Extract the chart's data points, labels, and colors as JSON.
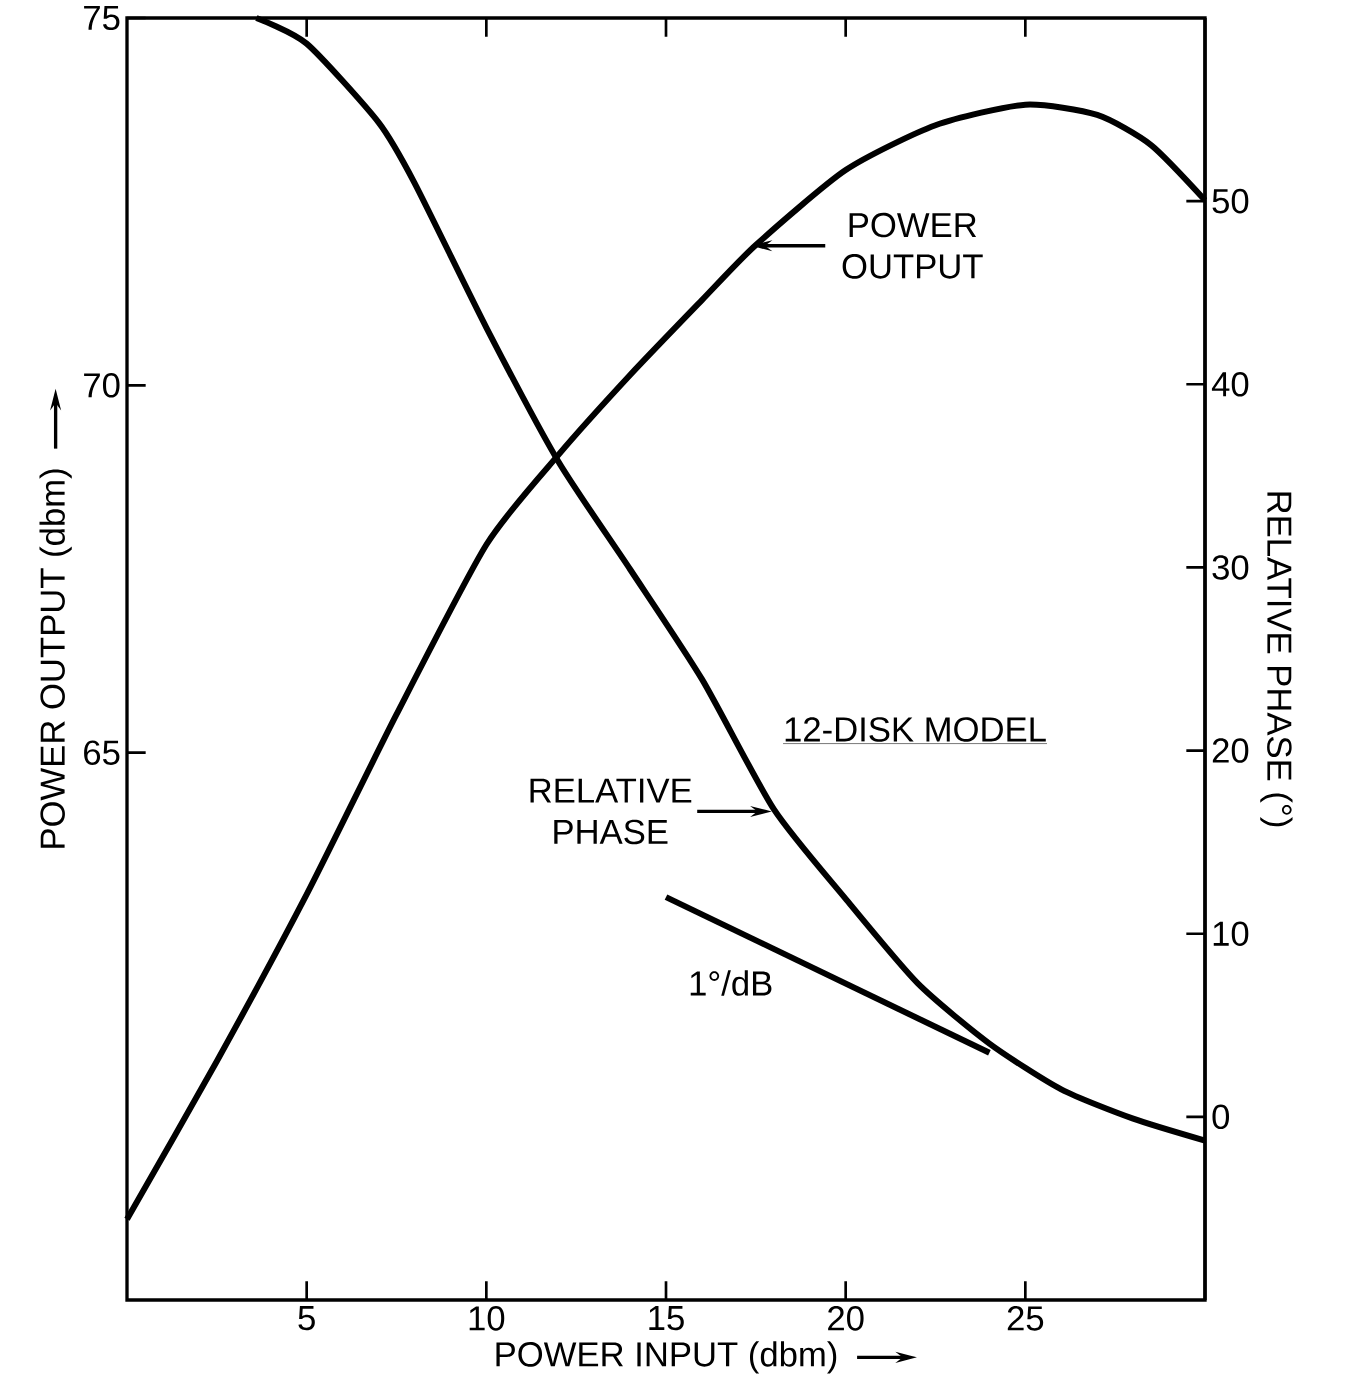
{
  "chart_data": {
    "type": "line",
    "xlabel": "POWER INPUT (dbm)",
    "ylabel": "POWER OUTPUT (dbm)",
    "y2label": "RELATIVE PHASE (°)",
    "xlim": [
      0,
      30
    ],
    "xticks": [
      5,
      10,
      15,
      20,
      25
    ],
    "ylim": [
      57.55,
      75
    ],
    "yticks": [
      65,
      70,
      75
    ],
    "y2lim": [
      -10,
      60
    ],
    "y2ticks": [
      0,
      10,
      20,
      30,
      40,
      50
    ],
    "series": [
      {
        "color": "#000000",
        "x": [
          0,
          2.5,
          5,
          7.5,
          10,
          12,
          14,
          16,
          17.5,
          20,
          22.5,
          25,
          27,
          28.5,
          30
        ],
        "values": [
          58.65,
          60.8,
          63.07,
          65.52,
          67.83,
          69.05,
          70.14,
          71.16,
          71.91,
          72.93,
          73.54,
          73.82,
          73.68,
          73.27,
          72.52
        ]
      },
      {
        "color": "#000000",
        "axis": "y2",
        "x": [
          3.6,
          5,
          7,
          8,
          10,
          12,
          14,
          16,
          18,
          20,
          22,
          24,
          26,
          28,
          30
        ],
        "values": [
          60,
          58.6,
          54.3,
          51,
          43.1,
          35.8,
          29.9,
          23.9,
          16.8,
          11.9,
          7.3,
          4,
          1.5,
          -0.1,
          -1.3
        ]
      },
      {
        "name": "1°/dB",
        "color": "#000000",
        "axis": "y2",
        "x": [
          15,
          24
        ],
        "values": [
          12,
          3.5
        ]
      }
    ],
    "annotations": [
      {
        "text": "POWER OUTPUT",
        "x": 17.3,
        "y": 71.9
      },
      {
        "text": "RELATIVE PHASE",
        "x": 18,
        "y": 64.2
      },
      "12-DISK MODEL"
    ]
  }
}
